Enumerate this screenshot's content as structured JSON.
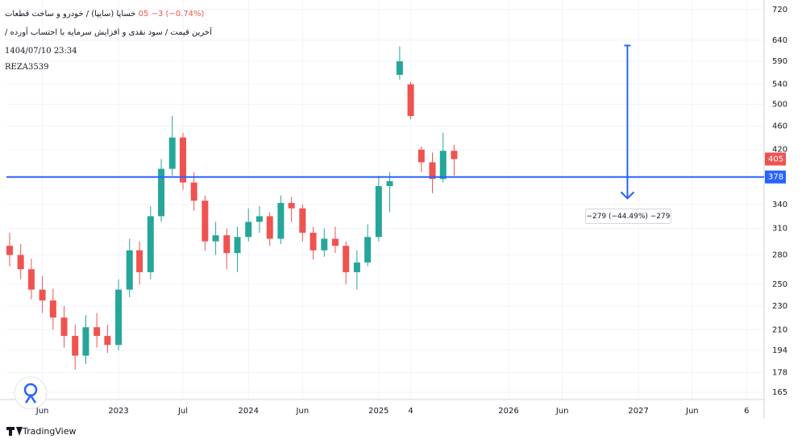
{
  "chart_data": {
    "type": "candlestick",
    "title": "خساپا (سایپا) / خودرو و ساخت قطعات",
    "change": "05  −3 (−0.74%)",
    "subtitle": "آخرین قیمت / سود نقدی و افزایش سرمایه با احتساب آورده /",
    "timestamp": "1404/07/10 23:34",
    "author": "REZA3539",
    "brand": "TradingView",
    "x": [
      "2022-03",
      "2022-04",
      "2022-05",
      "2022-06",
      "2022-07",
      "2022-08",
      "2022-09",
      "2022-10",
      "2022-11",
      "2022-12",
      "2023-01",
      "2023-02",
      "2023-03",
      "2023-04",
      "2023-05",
      "2023-06",
      "2023-07",
      "2023-08",
      "2023-09",
      "2023-10",
      "2023-11",
      "2023-12",
      "2024-01",
      "2024-02",
      "2024-03",
      "2024-04",
      "2024-05",
      "2024-06",
      "2024-07",
      "2024-08",
      "2024-09",
      "2024-10",
      "2024-11",
      "2024-12",
      "2025-01",
      "2025-02",
      "2025-03",
      "2025-04",
      "2025-05",
      "2025-06",
      "2025-07",
      "2025-08"
    ],
    "open": [
      290,
      280,
      265,
      245,
      235,
      220,
      205,
      190,
      212,
      205,
      198,
      245,
      285,
      262,
      325,
      390,
      440,
      370,
      345,
      295,
      302,
      282,
      300,
      318,
      325,
      298,
      342,
      335,
      305,
      285,
      298,
      290,
      262,
      272,
      300,
      365,
      560,
      540,
      420,
      400,
      375,
      418
    ],
    "high": [
      305,
      292,
      276,
      258,
      246,
      230,
      214,
      222,
      224,
      214,
      255,
      298,
      295,
      338,
      405,
      478,
      448,
      385,
      352,
      318,
      310,
      312,
      335,
      338,
      330,
      352,
      350,
      340,
      312,
      310,
      312,
      295,
      285,
      315,
      380,
      385,
      625,
      545,
      425,
      415,
      448,
      428
    ],
    "low": [
      268,
      255,
      236,
      224,
      210,
      196,
      180,
      184,
      196,
      192,
      194,
      238,
      250,
      255,
      318,
      380,
      360,
      332,
      285,
      280,
      265,
      262,
      295,
      305,
      290,
      292,
      318,
      295,
      275,
      278,
      282,
      250,
      245,
      268,
      295,
      330,
      550,
      472,
      385,
      355,
      370,
      380
    ],
    "close": [
      280,
      265,
      245,
      235,
      220,
      205,
      190,
      212,
      205,
      198,
      245,
      285,
      262,
      325,
      390,
      440,
      370,
      345,
      295,
      302,
      282,
      300,
      318,
      325,
      298,
      342,
      335,
      305,
      285,
      298,
      290,
      262,
      272,
      300,
      365,
      372,
      590,
      478,
      400,
      375,
      418,
      405
    ],
    "up_color": "#26a69a",
    "down_color": "#ef5350",
    "log_scale": true,
    "grid": true,
    "xlim": [
      "2022-02-20",
      "2027-12-20"
    ],
    "xticks": [
      {
        "value": "2022-06",
        "label": "Jun"
      },
      {
        "value": "2023-01",
        "label": "2023"
      },
      {
        "value": "2023-07",
        "label": "Jul"
      },
      {
        "value": "2024-01",
        "label": "2024"
      },
      {
        "value": "2024-06",
        "label": "Jun"
      },
      {
        "value": "2025-01",
        "label": "2025"
      },
      {
        "value": "2025-04",
        "label": "4"
      },
      {
        "value": "2026-01",
        "label": "2026"
      },
      {
        "value": "2026-06",
        "label": "Jun"
      },
      {
        "value": "2027-01",
        "label": "2027"
      },
      {
        "value": "2027-06",
        "label": "Jun"
      },
      {
        "value": "2027-11",
        "label": "6"
      }
    ],
    "ylim": [
      161,
      747
    ],
    "yticks": [
      165,
      178,
      194,
      210,
      230,
      250,
      280,
      310,
      340,
      420,
      460,
      500,
      540,
      590,
      640,
      720
    ],
    "price_line": {
      "value": 378,
      "color": "#2962ff"
    },
    "measure": {
      "date": "2026-12",
      "from": 627,
      "to": 348,
      "label": "−279 (−44.49%) −279",
      "color": "#2962ff"
    }
  }
}
